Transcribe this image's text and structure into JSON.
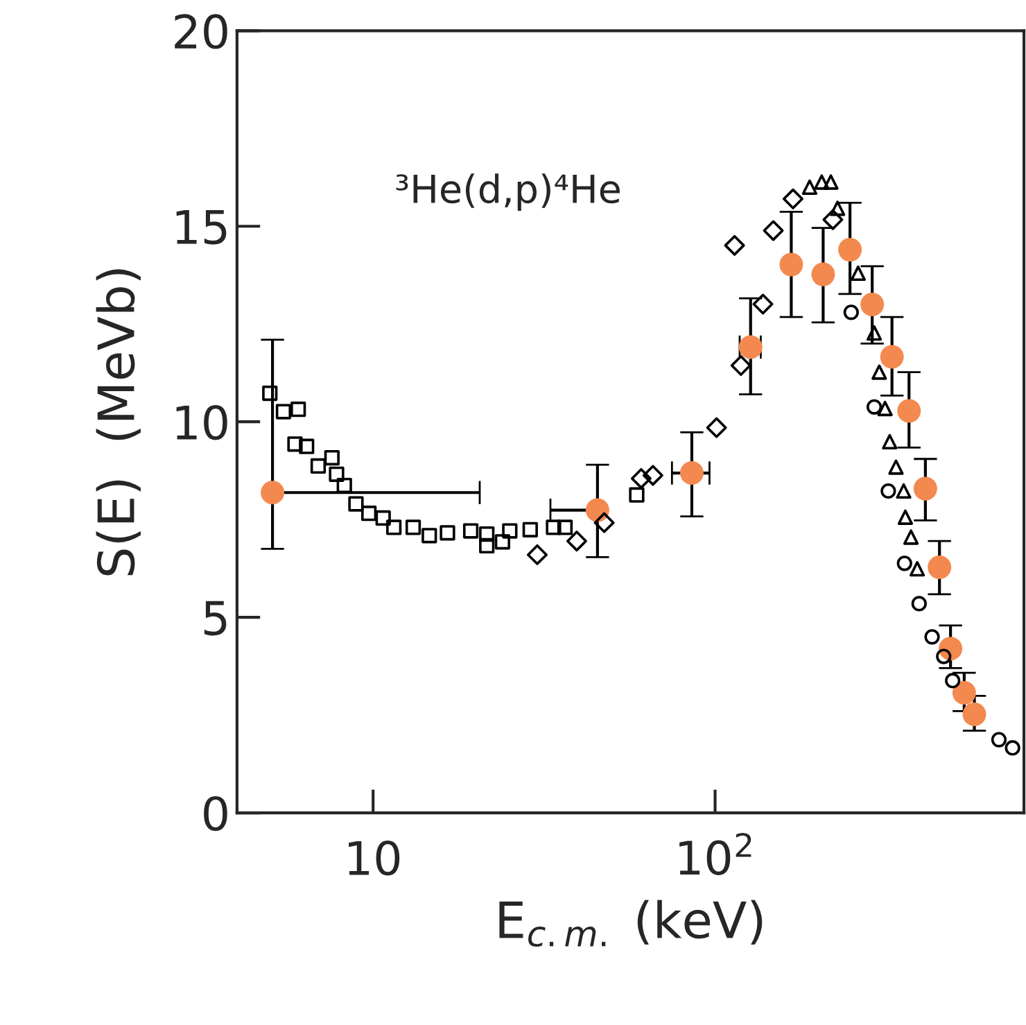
{
  "chart_data": {
    "type": "scatter",
    "xlabel": "E$_{c.m.}$ (keV)",
    "ylabel": "S(E)  (MeVb)",
    "annotations": [
      "³He(d,p)⁴He"
    ],
    "log": "x",
    "grid": false,
    "legend": false,
    "xlim": [
      4,
      800
    ],
    "xticks": [
      10,
      {
        "value": 100,
        "label": "10$^{2}$"
      }
    ],
    "ylim": [
      0,
      20
    ],
    "yticks": [
      0,
      5,
      10,
      15,
      20
    ],
    "series": [
      {
        "color": "#000000",
        "marker": "square",
        "x": [
          4.99,
          5.47,
          6.04,
          5.91,
          6.39,
          6.91,
          7.58,
          7.82,
          8.24,
          8.91,
          9.72,
          10.7,
          11.5,
          13.1,
          14.6,
          16.5,
          19.3,
          21.5,
          25.1,
          21.5,
          23.9,
          28.8,
          33.7,
          36.4,
          59.0
        ],
        "values": [
          10.73,
          10.26,
          10.32,
          9.43,
          9.37,
          8.87,
          9.08,
          8.66,
          8.37,
          7.9,
          7.66,
          7.54,
          7.3,
          7.3,
          7.09,
          7.16,
          7.21,
          7.13,
          7.21,
          6.83,
          6.93,
          7.24,
          7.3,
          7.3,
          8.13
        ]
      },
      {
        "color": "#000000",
        "marker": "diamond",
        "x": [
          30.2,
          39.4,
          47.4,
          60.8,
          65.8,
          101,
          119,
          138,
          114,
          148,
          169,
          221
        ],
        "values": [
          6.6,
          6.95,
          7.42,
          8.55,
          8.63,
          9.85,
          11.44,
          13.01,
          14.51,
          14.89,
          15.7,
          15.17
        ]
      },
      {
        "color": "#000000",
        "marker": "triangle",
        "x": [
          189,
          205,
          218,
          228,
          262,
          292,
          302,
          314,
          324,
          338,
          356,
          360,
          374,
          390
        ],
        "values": [
          16.0,
          16.13,
          16.13,
          15.46,
          13.8,
          12.27,
          11.27,
          10.34,
          9.49,
          8.84,
          8.23,
          7.56,
          7.05,
          6.24
        ]
      },
      {
        "color": "#000000",
        "marker": "circle",
        "x": [
          250,
          292,
          321,
          358,
          395,
          431,
          466,
          495,
          676,
          741
        ],
        "values": [
          12.8,
          10.38,
          8.23,
          6.38,
          5.35,
          4.5,
          4.0,
          3.38,
          1.87,
          1.66
        ]
      },
      {
        "color": "#f4894f",
        "marker": "circle",
        "x": [
          5.08,
          45.3,
          85.5,
          127,
          167,
          207,
          248,
          288,
          329,
          369,
          412,
          453,
          488,
          535,
          573
        ],
        "values": [
          8.19,
          7.74,
          8.69,
          11.91,
          14.02,
          13.77,
          14.4,
          13.0,
          11.66,
          10.28,
          8.29,
          6.28,
          4.2,
          3.07,
          2.52
        ],
        "errors": [
          [
            6.75,
            12.1
          ],
          [
            6.54,
            8.9
          ],
          [
            7.58,
            9.73
          ],
          [
            10.7,
            13.16
          ],
          [
            12.68,
            15.37
          ],
          [
            12.54,
            14.96
          ],
          [
            13.27,
            15.6
          ],
          [
            12.0,
            13.98
          ],
          [
            10.67,
            12.68
          ],
          [
            9.34,
            11.27
          ],
          [
            7.48,
            9.05
          ],
          [
            5.59,
            6.95
          ],
          [
            3.7,
            4.79
          ],
          [
            2.6,
            3.58
          ],
          [
            2.1,
            2.99
          ]
        ],
        "xerrors": [
          [
            5.08,
            20.5
          ],
          [
            33.0,
            45.3
          ],
          [
            74.8,
            96.3
          ],
          [
            118,
            136
          ],
          null,
          null,
          null,
          null,
          null,
          null,
          null,
          null,
          null,
          null,
          null
        ]
      }
    ]
  }
}
